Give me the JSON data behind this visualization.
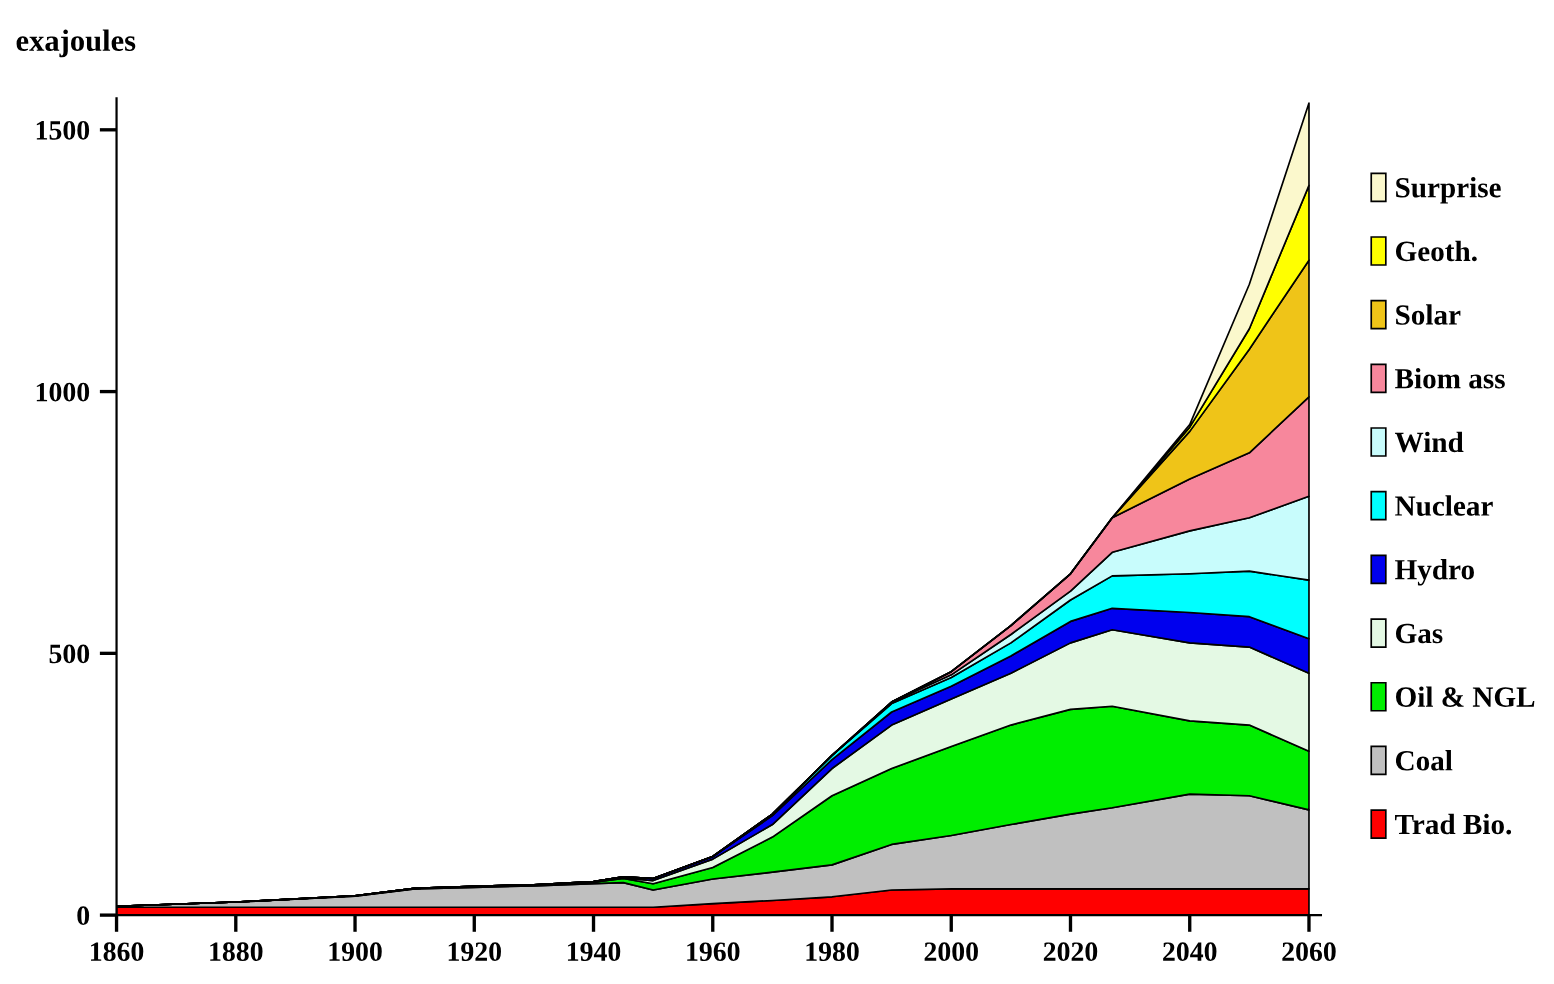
{
  "chart_data": {
    "type": "area",
    "stacked": true,
    "ylabel": "exajoules",
    "x": [
      1860,
      1880,
      1900,
      1910,
      1920,
      1930,
      1940,
      1945,
      1950,
      1960,
      1970,
      1980,
      1990,
      2000,
      2010,
      2020,
      2027,
      2040,
      2050,
      2060
    ],
    "xlim": [
      1860,
      2062
    ],
    "xticks": [
      1860,
      1880,
      1900,
      1920,
      1940,
      1960,
      1980,
      2000,
      2020,
      2040,
      2060
    ],
    "ylim": [
      0,
      1560
    ],
    "yticks": [
      0,
      500,
      1000,
      1500
    ],
    "grid": false,
    "legend": "right",
    "series": [
      {
        "name": "Trad Bio.",
        "color": "#ff0000",
        "values": [
          15,
          15,
          15,
          15,
          15,
          15,
          15,
          15,
          15,
          22,
          28,
          35,
          48,
          50,
          50,
          50,
          50,
          50,
          50,
          50
        ]
      },
      {
        "name": "Coal",
        "color": "#c0c0c0",
        "values": [
          2,
          10,
          21,
          35,
          38,
          41,
          45,
          47,
          33,
          47,
          54,
          61,
          87,
          102,
          123,
          143,
          155,
          181,
          178,
          151
        ]
      },
      {
        "name": "Oil & NGL",
        "color": "#00ee00",
        "values": [
          0,
          0,
          1,
          1,
          2,
          2,
          3,
          8,
          12,
          22,
          67,
          132,
          145,
          170,
          190,
          200,
          194,
          140,
          135,
          112
        ]
      },
      {
        "name": "Gas",
        "color": "#e4f9e4",
        "values": [
          0,
          0,
          0,
          0,
          0,
          0,
          0,
          1,
          6,
          16,
          24,
          52,
          83,
          91,
          99,
          127,
          146,
          149,
          149,
          149
        ]
      },
      {
        "name": "Hydro",
        "color": "#0000ee",
        "values": [
          0,
          0,
          0,
          0,
          0,
          0,
          1,
          2,
          4,
          5,
          17,
          17,
          25,
          24,
          33,
          41,
          41,
          58,
          58,
          66
        ]
      },
      {
        "name": "Nuclear",
        "color": "#00ffff",
        "values": [
          0,
          0,
          0,
          0,
          0,
          0,
          0,
          0,
          0,
          0,
          3,
          8,
          16,
          17,
          25,
          41,
          62,
          74,
          87,
          112
        ]
      },
      {
        "name": "Wind",
        "color": "#c8fcfc",
        "values": [
          0,
          0,
          0,
          0,
          0,
          0,
          0,
          0,
          0,
          0,
          0,
          0,
          3,
          5,
          16,
          17,
          45,
          82,
          102,
          160
        ]
      },
      {
        "name": "Biom ass",
        "color": "#f7879c",
        "values": [
          0,
          0,
          0,
          0,
          0,
          0,
          0,
          0,
          0,
          0,
          0,
          0,
          0,
          6,
          17,
          33,
          66,
          99,
          124,
          190
        ]
      },
      {
        "name": "Solar",
        "color": "#efc418",
        "values": [
          0,
          0,
          0,
          0,
          0,
          0,
          0,
          0,
          0,
          0,
          0,
          0,
          0,
          0,
          0,
          0,
          0,
          91,
          198,
          261
        ]
      },
      {
        "name": "Geoth.",
        "color": "#ffff00",
        "values": [
          0,
          0,
          0,
          0,
          0,
          0,
          0,
          0,
          0,
          0,
          0,
          0,
          0,
          0,
          0,
          0,
          0,
          8,
          39,
          143
        ]
      },
      {
        "name": "Surprise",
        "color": "#fbf8cc",
        "values": [
          0,
          0,
          0,
          0,
          0,
          0,
          0,
          0,
          0,
          0,
          0,
          0,
          0,
          0,
          0,
          0,
          0,
          5,
          85,
          157
        ]
      }
    ]
  }
}
